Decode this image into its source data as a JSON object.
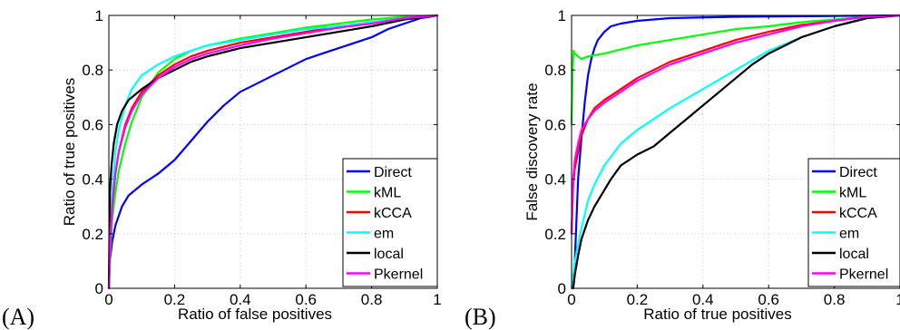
{
  "chart_data": [
    {
      "type": "line",
      "panel_label": "(A)",
      "title": "",
      "xlabel": "Ratio of false positives",
      "ylabel": "Ratio of true positives",
      "xlim": [
        0,
        1
      ],
      "ylim": [
        0,
        1
      ],
      "xticks": [
        "0",
        "0.2",
        "0.4",
        "0.6",
        "0.8",
        "1"
      ],
      "yticks": [
        "0",
        "0.2",
        "0.4",
        "0.6",
        "0.8",
        "1"
      ],
      "grid": true,
      "legend_position": "bottom-right",
      "series": [
        {
          "name": "Direct",
          "color": "#0000ff",
          "x": [
            0,
            0.003,
            0.01,
            0.02,
            0.04,
            0.06,
            0.1,
            0.15,
            0.2,
            0.25,
            0.3,
            0.35,
            0.4,
            0.45,
            0.5,
            0.55,
            0.6,
            0.65,
            0.7,
            0.75,
            0.8,
            0.85,
            0.9,
            0.95,
            1.0
          ],
          "y": [
            0,
            0.1,
            0.17,
            0.23,
            0.3,
            0.34,
            0.38,
            0.42,
            0.47,
            0.54,
            0.61,
            0.67,
            0.72,
            0.75,
            0.78,
            0.81,
            0.84,
            0.86,
            0.88,
            0.9,
            0.92,
            0.95,
            0.97,
            0.99,
            1.0
          ]
        },
        {
          "name": "kML",
          "color": "#00ff00",
          "x": [
            0,
            0.005,
            0.01,
            0.02,
            0.03,
            0.05,
            0.07,
            0.1,
            0.15,
            0.2,
            0.25,
            0.3,
            0.4,
            0.5,
            0.6,
            0.7,
            0.8,
            0.9,
            1.0
          ],
          "y": [
            0,
            0.15,
            0.25,
            0.35,
            0.43,
            0.53,
            0.61,
            0.7,
            0.79,
            0.84,
            0.87,
            0.89,
            0.915,
            0.935,
            0.955,
            0.97,
            0.985,
            0.995,
            1.0
          ]
        },
        {
          "name": "kCCA",
          "color": "#ff0000",
          "x": [
            0,
            0.005,
            0.01,
            0.02,
            0.03,
            0.05,
            0.07,
            0.1,
            0.15,
            0.2,
            0.25,
            0.3,
            0.4,
            0.5,
            0.6,
            0.7,
            0.8,
            0.9,
            1.0
          ],
          "y": [
            0,
            0.2,
            0.3,
            0.42,
            0.5,
            0.6,
            0.66,
            0.72,
            0.78,
            0.82,
            0.85,
            0.87,
            0.9,
            0.92,
            0.94,
            0.96,
            0.975,
            0.99,
            1.0
          ]
        },
        {
          "name": "em",
          "color": "#00ffff",
          "x": [
            0,
            0.005,
            0.01,
            0.02,
            0.03,
            0.05,
            0.07,
            0.1,
            0.15,
            0.2,
            0.25,
            0.3,
            0.4,
            0.5,
            0.6,
            0.7,
            0.8,
            0.9,
            1.0
          ],
          "y": [
            0,
            0.22,
            0.35,
            0.5,
            0.58,
            0.67,
            0.73,
            0.78,
            0.82,
            0.85,
            0.87,
            0.89,
            0.91,
            0.93,
            0.95,
            0.96,
            0.975,
            0.99,
            1.0
          ]
        },
        {
          "name": "local",
          "color": "#000000",
          "x": [
            0,
            0.003,
            0.008,
            0.015,
            0.025,
            0.04,
            0.06,
            0.08,
            0.1,
            0.15,
            0.2,
            0.25,
            0.3,
            0.4,
            0.5,
            0.6,
            0.7,
            0.8,
            0.9,
            1.0
          ],
          "y": [
            0,
            0.35,
            0.45,
            0.53,
            0.6,
            0.65,
            0.69,
            0.71,
            0.73,
            0.77,
            0.8,
            0.83,
            0.85,
            0.88,
            0.9,
            0.92,
            0.94,
            0.96,
            0.985,
            1.0
          ]
        },
        {
          "name": "Pkernel",
          "color": "#ff00ff",
          "x": [
            0,
            0.005,
            0.01,
            0.02,
            0.03,
            0.05,
            0.07,
            0.1,
            0.15,
            0.2,
            0.25,
            0.3,
            0.4,
            0.5,
            0.6,
            0.7,
            0.8,
            0.9,
            1.0
          ],
          "y": [
            0,
            0.2,
            0.3,
            0.42,
            0.5,
            0.59,
            0.65,
            0.71,
            0.77,
            0.81,
            0.84,
            0.86,
            0.89,
            0.915,
            0.935,
            0.955,
            0.97,
            0.99,
            1.0
          ]
        }
      ]
    },
    {
      "type": "line",
      "panel_label": "(B)",
      "title": "",
      "xlabel": "Ratio of true positives",
      "ylabel": "False discovery rate",
      "xlim": [
        0,
        1
      ],
      "ylim": [
        0,
        1
      ],
      "xticks": [
        "0",
        "0.2",
        "0.4",
        "0.6",
        "0.8",
        "1"
      ],
      "yticks": [
        "0",
        "0.2",
        "0.4",
        "0.6",
        "0.8",
        "1"
      ],
      "grid": true,
      "legend_position": "bottom-right",
      "series": [
        {
          "name": "Direct",
          "color": "#0000ff",
          "x": [
            0.005,
            0.01,
            0.015,
            0.02,
            0.03,
            0.04,
            0.05,
            0.06,
            0.07,
            0.08,
            0.1,
            0.12,
            0.15,
            0.2,
            0.3,
            0.5,
            0.7,
            0.9,
            1.0
          ],
          "y": [
            0.02,
            0.1,
            0.25,
            0.4,
            0.55,
            0.68,
            0.78,
            0.84,
            0.88,
            0.91,
            0.94,
            0.96,
            0.97,
            0.98,
            0.99,
            0.995,
            0.997,
            0.999,
            1.0
          ]
        },
        {
          "name": "kML",
          "color": "#00ff00",
          "x": [
            0.0,
            0.003,
            0.006,
            0.01,
            0.02,
            0.03,
            0.05,
            0.1,
            0.15,
            0.2,
            0.3,
            0.4,
            0.5,
            0.6,
            0.7,
            0.8,
            0.9,
            1.0
          ],
          "y": [
            0.6,
            0.8,
            0.87,
            0.86,
            0.85,
            0.84,
            0.85,
            0.86,
            0.875,
            0.89,
            0.91,
            0.93,
            0.95,
            0.96,
            0.975,
            0.985,
            0.995,
            1.0
          ]
        },
        {
          "name": "kCCA",
          "color": "#ff0000",
          "x": [
            0.0,
            0.005,
            0.01,
            0.02,
            0.03,
            0.05,
            0.07,
            0.1,
            0.15,
            0.2,
            0.3,
            0.4,
            0.5,
            0.6,
            0.7,
            0.8,
            0.9,
            1.0
          ],
          "y": [
            0.2,
            0.38,
            0.44,
            0.5,
            0.56,
            0.62,
            0.66,
            0.69,
            0.73,
            0.77,
            0.83,
            0.87,
            0.91,
            0.94,
            0.965,
            0.98,
            0.995,
            1.0
          ]
        },
        {
          "name": "em",
          "color": "#00ffff",
          "x": [
            0.0,
            0.01,
            0.02,
            0.03,
            0.05,
            0.07,
            0.1,
            0.15,
            0.2,
            0.3,
            0.4,
            0.5,
            0.6,
            0.7,
            0.8,
            0.9,
            1.0
          ],
          "y": [
            0.0,
            0.1,
            0.16,
            0.22,
            0.32,
            0.38,
            0.45,
            0.53,
            0.58,
            0.66,
            0.73,
            0.8,
            0.87,
            0.92,
            0.96,
            0.99,
            1.0
          ]
        },
        {
          "name": "local",
          "color": "#000000",
          "x": [
            0.005,
            0.01,
            0.02,
            0.03,
            0.05,
            0.07,
            0.1,
            0.12,
            0.15,
            0.2,
            0.25,
            0.3,
            0.35,
            0.4,
            0.45,
            0.5,
            0.55,
            0.6,
            0.65,
            0.7,
            0.8,
            0.9,
            1.0
          ],
          "y": [
            0.0,
            0.05,
            0.12,
            0.18,
            0.25,
            0.3,
            0.36,
            0.4,
            0.45,
            0.49,
            0.52,
            0.57,
            0.62,
            0.67,
            0.72,
            0.77,
            0.82,
            0.86,
            0.89,
            0.92,
            0.96,
            0.99,
            1.0
          ]
        },
        {
          "name": "Pkernel",
          "color": "#ff00ff",
          "x": [
            0.0,
            0.005,
            0.01,
            0.02,
            0.03,
            0.05,
            0.07,
            0.1,
            0.15,
            0.2,
            0.3,
            0.4,
            0.5,
            0.6,
            0.7,
            0.8,
            0.9,
            1.0
          ],
          "y": [
            0.2,
            0.4,
            0.47,
            0.53,
            0.58,
            0.62,
            0.65,
            0.68,
            0.72,
            0.76,
            0.82,
            0.86,
            0.9,
            0.93,
            0.96,
            0.98,
            0.995,
            1.0
          ]
        }
      ]
    }
  ]
}
